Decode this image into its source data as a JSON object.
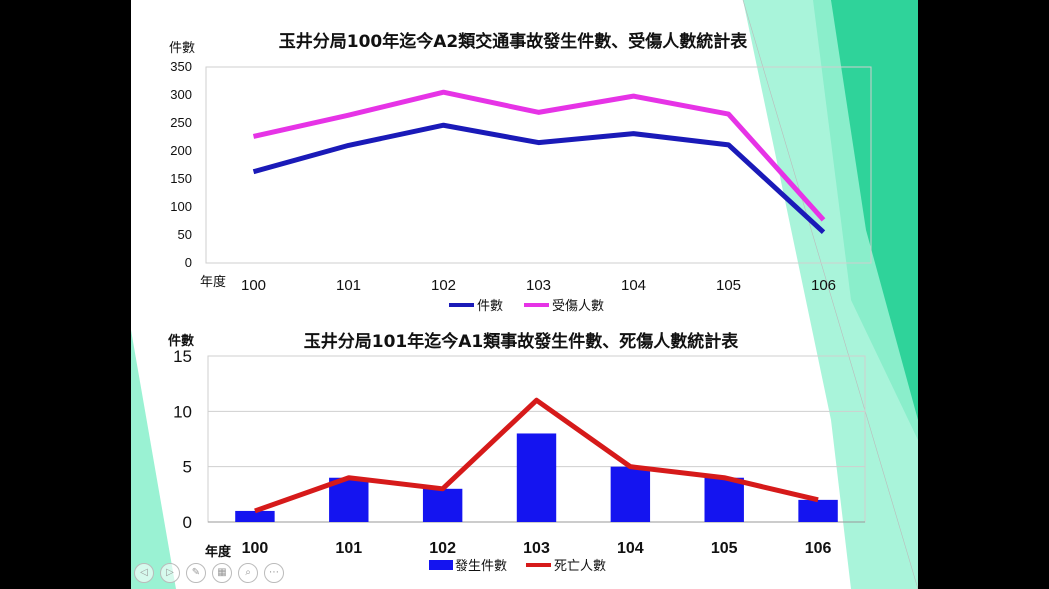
{
  "slide": {
    "colors": {
      "background": "#ffffff",
      "accent_dark": "#2fd39a",
      "accent_light": "#9af2d3",
      "frame": "#000000"
    },
    "toolbar": [
      {
        "name": "prev-slide-icon",
        "glyph": "◁"
      },
      {
        "name": "next-slide-icon",
        "glyph": "▷"
      },
      {
        "name": "pen-icon",
        "glyph": "✎"
      },
      {
        "name": "grid-view-icon",
        "glyph": "▦"
      },
      {
        "name": "zoom-icon",
        "glyph": "⌕"
      },
      {
        "name": "more-options-icon",
        "glyph": "⋯"
      }
    ]
  },
  "chart_data": [
    {
      "type": "line",
      "title": "玉井分局100年迄今A2類交通事故發生件數、受傷人數統計表",
      "ylabel": "件數",
      "xlabel": "年度",
      "categories": [
        "100",
        "101",
        "102",
        "103",
        "104",
        "105",
        "106"
      ],
      "ylim": [
        0,
        350
      ],
      "yticks": [
        0,
        50,
        100,
        150,
        200,
        250,
        300,
        350
      ],
      "grid": false,
      "legend_position": "bottom",
      "series": [
        {
          "name": "件數",
          "values": [
            163,
            210,
            246,
            215,
            231,
            211,
            55
          ],
          "color": "#1a1ab8"
        },
        {
          "name": "受傷人數",
          "values": [
            226,
            264,
            305,
            269,
            298,
            266,
            77
          ],
          "color": "#e633e6"
        }
      ]
    },
    {
      "type": "bar",
      "title": "玉井分局101年迄今A1類事故發生件數、死傷人數統計表",
      "ylabel": "件數",
      "xlabel": "年度",
      "categories": [
        "100",
        "101",
        "102",
        "103",
        "104",
        "105",
        "106"
      ],
      "ylim": [
        0,
        15
      ],
      "yticks": [
        0,
        5,
        10,
        15
      ],
      "grid": true,
      "legend_position": "bottom",
      "series": [
        {
          "name": "發生件數",
          "kind": "bar",
          "values": [
            1,
            4,
            3,
            8,
            5,
            4,
            2
          ],
          "color": "#1414f0"
        },
        {
          "name": "死亡人數",
          "kind": "line",
          "values": [
            1,
            4,
            3,
            11,
            5,
            4,
            2
          ],
          "color": "#d61a1a"
        }
      ]
    }
  ]
}
